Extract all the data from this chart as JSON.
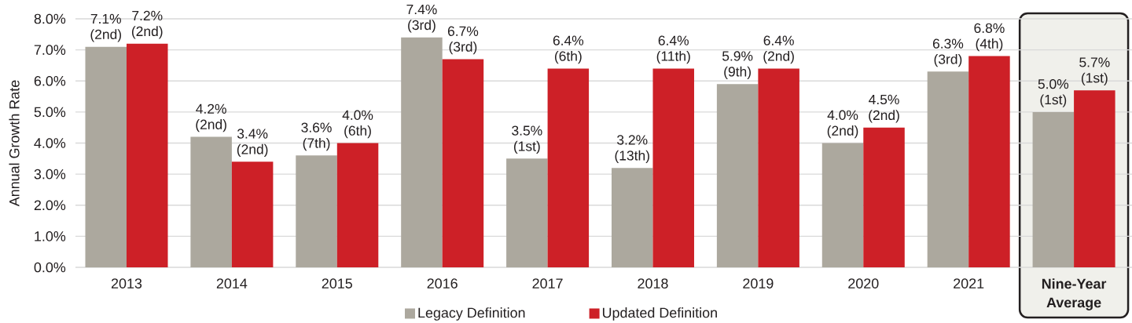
{
  "chart_data": {
    "type": "bar",
    "ylabel": "Annual Growth Rate",
    "categories": [
      "2013",
      "2014",
      "2015",
      "2016",
      "2017",
      "2018",
      "2019",
      "2020",
      "2021",
      "Nine-Year Average"
    ],
    "series": [
      {
        "name": "Legacy Definition",
        "color": "#aca89e",
        "values": [
          7.1,
          4.2,
          3.6,
          7.4,
          3.5,
          3.2,
          5.9,
          4.0,
          6.3,
          5.0
        ],
        "value_labels": [
          "7.1% (2nd)",
          "4.2% (2nd)",
          "3.6% (7th)",
          "7.4% (3rd)",
          "3.5% (1st)",
          "3.2% (13th)",
          "5.9% (9th)",
          "4.0% (2nd)",
          "6.3% (3rd)",
          "5.0% (1st)"
        ]
      },
      {
        "name": "Updated Definition",
        "color": "#cd2027",
        "values": [
          7.2,
          3.4,
          4.0,
          6.7,
          6.4,
          6.4,
          6.4,
          4.5,
          6.8,
          5.7
        ],
        "value_labels": [
          "7.2% (2nd)",
          "3.4% (2nd)",
          "4.0% (6th)",
          "6.7% (3rd)",
          "6.4% (6th)",
          "6.4% (11th)",
          "6.4% (2nd)",
          "4.5% (2nd)",
          "6.8% (4th)",
          "5.7% (1st)"
        ]
      }
    ],
    "ylim": [
      0,
      8
    ],
    "yticks": [
      {
        "value": 0,
        "label": "0.0%"
      },
      {
        "value": 1,
        "label": "1.0%"
      },
      {
        "value": 2,
        "label": "2.0%"
      },
      {
        "value": 3,
        "label": "3.0%"
      },
      {
        "value": 4,
        "label": "4.0%"
      },
      {
        "value": 5,
        "label": "5.0%"
      },
      {
        "value": 6,
        "label": "6.0%"
      },
      {
        "value": 7,
        "label": "7.0%"
      },
      {
        "value": 8,
        "label": "8.0%"
      }
    ],
    "bands": [
      {
        "axis": "x",
        "from": "Nine-Year Average",
        "to": "Nine-Year Average",
        "color": "#f0f0eb"
      }
    ],
    "grid": "y",
    "legend": "bottom"
  }
}
